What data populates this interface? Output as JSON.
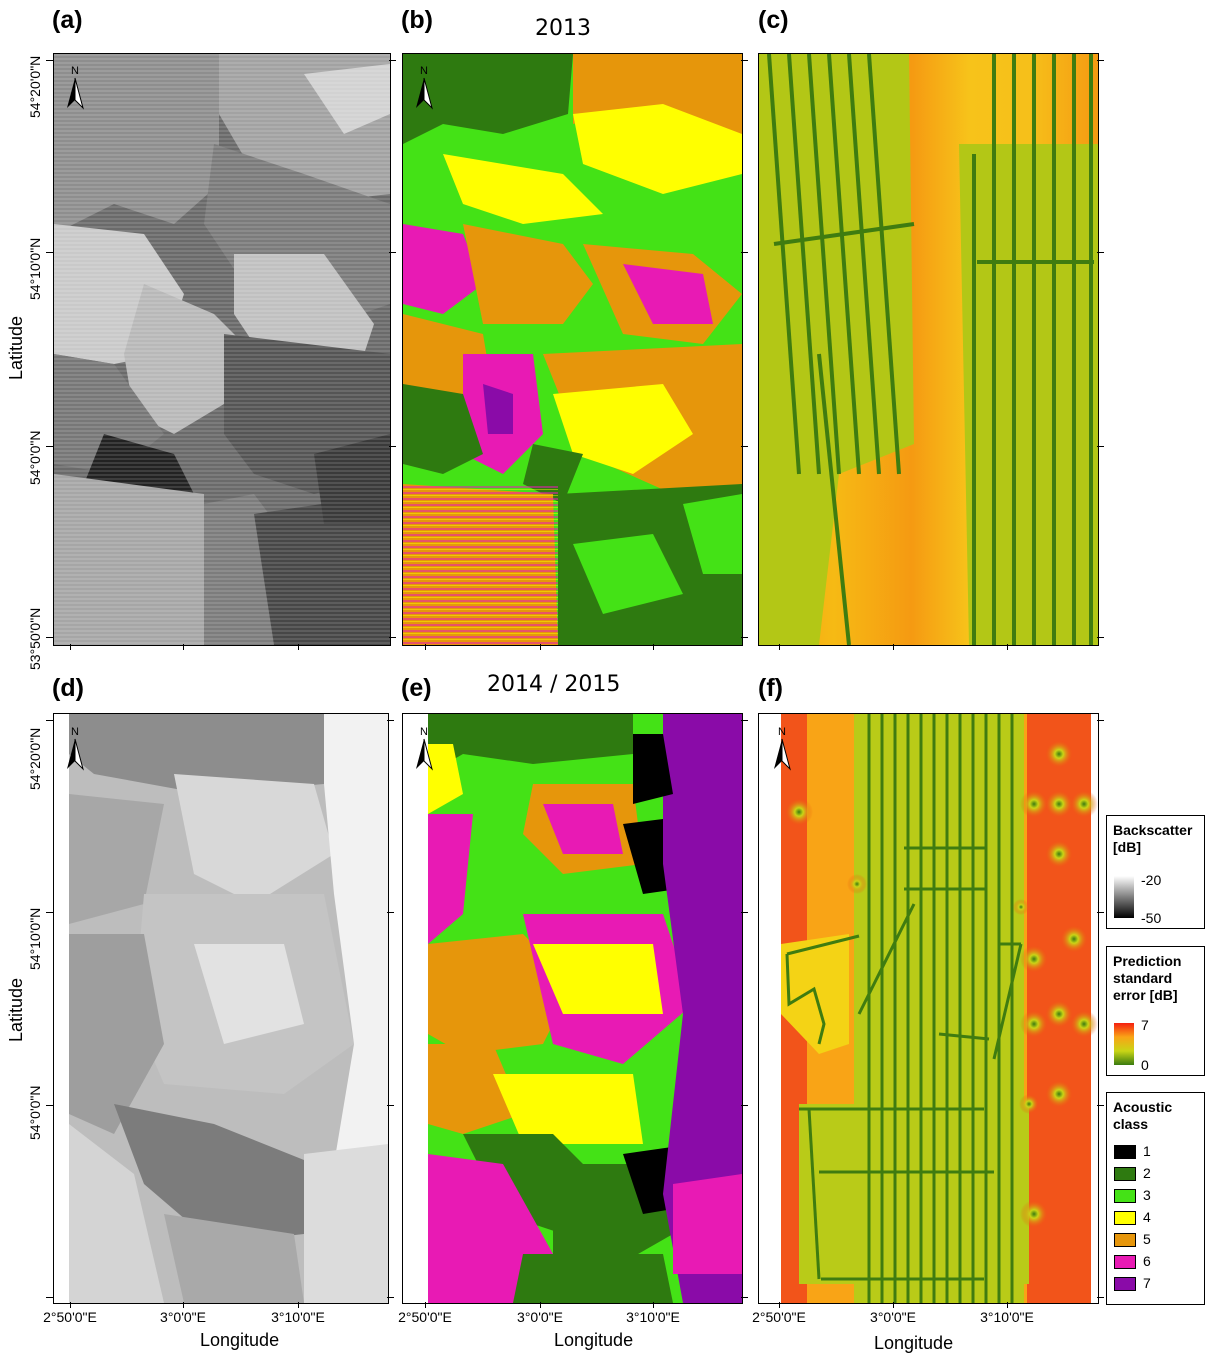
{
  "panels": {
    "a": {
      "label": "(a)"
    },
    "b": {
      "label": "(b)"
    },
    "c": {
      "label": "(c)"
    },
    "d": {
      "label": "(d)"
    },
    "e": {
      "label": "(e)"
    },
    "f": {
      "label": "(f)"
    }
  },
  "years": {
    "top": "2013",
    "bottom": "2014 / 2015"
  },
  "axes": {
    "latitude_title": "Latitude",
    "longitude_title": "Longitude",
    "lat_ticks_top": [
      "54°20'0\"N",
      "54°10'0\"N",
      "54°0'0\"N",
      "53°50'0\"N"
    ],
    "lat_ticks_bottom": [
      "54°20'0\"N",
      "54°10'0\"N",
      "54°0'0\"N"
    ],
    "lon_ticks": [
      "2°50'0\"E",
      "3°0'0\"E",
      "3°10'0\"E"
    ]
  },
  "north_arrow": {
    "letter": "N",
    "icon": "north-arrow-icon"
  },
  "legend": {
    "backscatter": {
      "title": "Backscatter\n[dB]",
      "max": "-20",
      "min": "-50"
    },
    "prediction": {
      "title": "Prediction\nstandard\nerror [dB]",
      "max": "7",
      "min": "0"
    },
    "acoustic": {
      "title": "Acoustic\nclass",
      "classes": [
        {
          "label": "1",
          "color": "#000000"
        },
        {
          "label": "2",
          "color": "#2e7a10"
        },
        {
          "label": "3",
          "color": "#44e216"
        },
        {
          "label": "4",
          "color": "#ffff00"
        },
        {
          "label": "5",
          "color": "#e6960b"
        },
        {
          "label": "6",
          "color": "#e81ab4"
        },
        {
          "label": "7",
          "color": "#8a0ba8"
        }
      ]
    }
  }
}
